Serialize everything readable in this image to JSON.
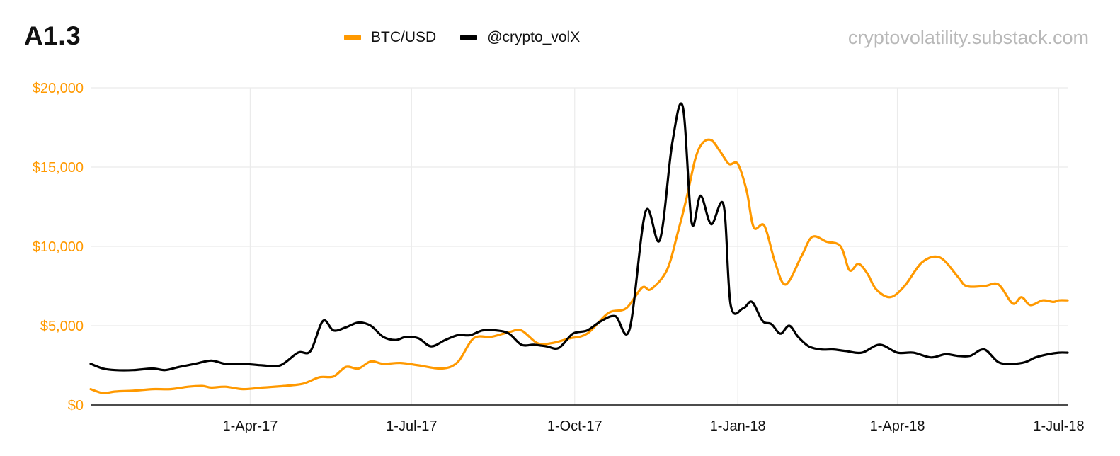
{
  "title": "A1.3",
  "source": "cryptovolatility.substack.com",
  "colors": {
    "btc": "#ff9900",
    "vol": "#000000",
    "grid": "#ebebeb",
    "axis": "#111111",
    "ytick": "#ff9900",
    "source": "#b8b8b8"
  },
  "chart_data": {
    "type": "line",
    "legend_position": "top-center",
    "grid": true,
    "xlim": [
      "2017-01-01",
      "2018-07-06"
    ],
    "ylim": [
      0,
      20000
    ],
    "yticks": [
      0,
      5000,
      10000,
      15000,
      20000
    ],
    "ytick_labels": [
      "$0",
      "$5,000",
      "$10,000",
      "$15,000",
      "$20,000"
    ],
    "xticks": [
      "2017-04-01",
      "2017-07-01",
      "2017-10-01",
      "2018-01-01",
      "2018-04-01",
      "2018-07-01"
    ],
    "xtick_labels": [
      "1-Apr-17",
      "1-Jul-17",
      "1-Oct-17",
      "1-Jan-18",
      "1-Apr-18",
      "1-Jul-18"
    ],
    "series": [
      {
        "name": "BTC/USD",
        "color": "#ff9900",
        "x": [
          "2017-01-01",
          "2017-01-08",
          "2017-01-15",
          "2017-01-25",
          "2017-02-05",
          "2017-02-15",
          "2017-02-25",
          "2017-03-05",
          "2017-03-10",
          "2017-03-18",
          "2017-03-28",
          "2017-04-08",
          "2017-04-20",
          "2017-05-01",
          "2017-05-10",
          "2017-05-18",
          "2017-05-25",
          "2017-06-01",
          "2017-06-08",
          "2017-06-15",
          "2017-06-25",
          "2017-07-05",
          "2017-07-18",
          "2017-07-27",
          "2017-08-05",
          "2017-08-15",
          "2017-08-25",
          "2017-09-01",
          "2017-09-10",
          "2017-09-18",
          "2017-09-28",
          "2017-10-08",
          "2017-10-20",
          "2017-10-30",
          "2017-11-08",
          "2017-11-13",
          "2017-11-22",
          "2017-11-28",
          "2017-12-03",
          "2017-12-08",
          "2017-12-12",
          "2017-12-17",
          "2017-12-22",
          "2017-12-27",
          "2018-01-01",
          "2018-01-06",
          "2018-01-10",
          "2018-01-16",
          "2018-01-22",
          "2018-01-28",
          "2018-02-06",
          "2018-02-12",
          "2018-02-20",
          "2018-02-28",
          "2018-03-05",
          "2018-03-10",
          "2018-03-15",
          "2018-03-20",
          "2018-03-28",
          "2018-04-05",
          "2018-04-15",
          "2018-04-25",
          "2018-05-05",
          "2018-05-10",
          "2018-05-20",
          "2018-05-28",
          "2018-06-05",
          "2018-06-10",
          "2018-06-15",
          "2018-06-22",
          "2018-06-28",
          "2018-07-01",
          "2018-07-06"
        ],
        "values": [
          1000,
          750,
          850,
          900,
          1000,
          1000,
          1150,
          1200,
          1100,
          1150,
          1000,
          1100,
          1200,
          1350,
          1750,
          1800,
          2400,
          2300,
          2750,
          2600,
          2650,
          2500,
          2300,
          2700,
          4200,
          4300,
          4600,
          4700,
          3900,
          3900,
          4200,
          4500,
          5800,
          6100,
          7400,
          7300,
          8500,
          10800,
          13000,
          15500,
          16500,
          16700,
          16000,
          15200,
          15200,
          13500,
          11200,
          11300,
          9000,
          7600,
          9400,
          10600,
          10300,
          10000,
          8500,
          8900,
          8300,
          7300,
          6800,
          7500,
          9000,
          9300,
          8100,
          7500,
          7500,
          7600,
          6400,
          6800,
          6300,
          6600,
          6500,
          6600,
          6600
        ]
      },
      {
        "name": "@crypto_volX",
        "color": "#000000",
        "x": [
          "2017-01-01",
          "2017-01-08",
          "2017-01-15",
          "2017-01-25",
          "2017-02-05",
          "2017-02-12",
          "2017-02-20",
          "2017-03-01",
          "2017-03-10",
          "2017-03-18",
          "2017-03-28",
          "2017-04-08",
          "2017-04-18",
          "2017-04-28",
          "2017-05-05",
          "2017-05-12",
          "2017-05-18",
          "2017-05-25",
          "2017-06-01",
          "2017-06-08",
          "2017-06-15",
          "2017-06-22",
          "2017-06-28",
          "2017-07-05",
          "2017-07-12",
          "2017-07-20",
          "2017-07-27",
          "2017-08-03",
          "2017-08-10",
          "2017-08-18",
          "2017-08-25",
          "2017-09-01",
          "2017-09-08",
          "2017-09-15",
          "2017-09-22",
          "2017-09-30",
          "2017-10-08",
          "2017-10-16",
          "2017-10-24",
          "2017-11-01",
          "2017-11-10",
          "2017-11-18",
          "2017-11-25",
          "2017-12-01",
          "2017-12-06",
          "2017-12-11",
          "2017-12-17",
          "2017-12-24",
          "2017-12-28",
          "2018-01-04",
          "2018-01-09",
          "2018-01-15",
          "2018-01-20",
          "2018-01-25",
          "2018-01-30",
          "2018-02-04",
          "2018-02-10",
          "2018-02-17",
          "2018-02-24",
          "2018-03-03",
          "2018-03-12",
          "2018-03-22",
          "2018-04-01",
          "2018-04-10",
          "2018-04-20",
          "2018-04-28",
          "2018-05-05",
          "2018-05-12",
          "2018-05-20",
          "2018-05-28",
          "2018-06-05",
          "2018-06-12",
          "2018-06-18",
          "2018-06-25",
          "2018-07-01",
          "2018-07-06"
        ],
        "values": [
          2600,
          2300,
          2200,
          2200,
          2300,
          2200,
          2400,
          2600,
          2800,
          2600,
          2600,
          2500,
          2500,
          3300,
          3400,
          5300,
          4700,
          4900,
          5200,
          5000,
          4300,
          4100,
          4300,
          4200,
          3700,
          4100,
          4400,
          4400,
          4700,
          4700,
          4500,
          3800,
          3800,
          3700,
          3600,
          4500,
          4700,
          5300,
          5600,
          4800,
          12200,
          10400,
          16500,
          18800,
          11500,
          13200,
          11400,
          12600,
          6300,
          6100,
          6500,
          5300,
          5100,
          4500,
          5000,
          4300,
          3700,
          3500,
          3500,
          3400,
          3300,
          3800,
          3300,
          3300,
          3000,
          3200,
          3100,
          3100,
          3500,
          2700,
          2600,
          2700,
          3000,
          3200,
          3300,
          3300
        ]
      }
    ]
  }
}
